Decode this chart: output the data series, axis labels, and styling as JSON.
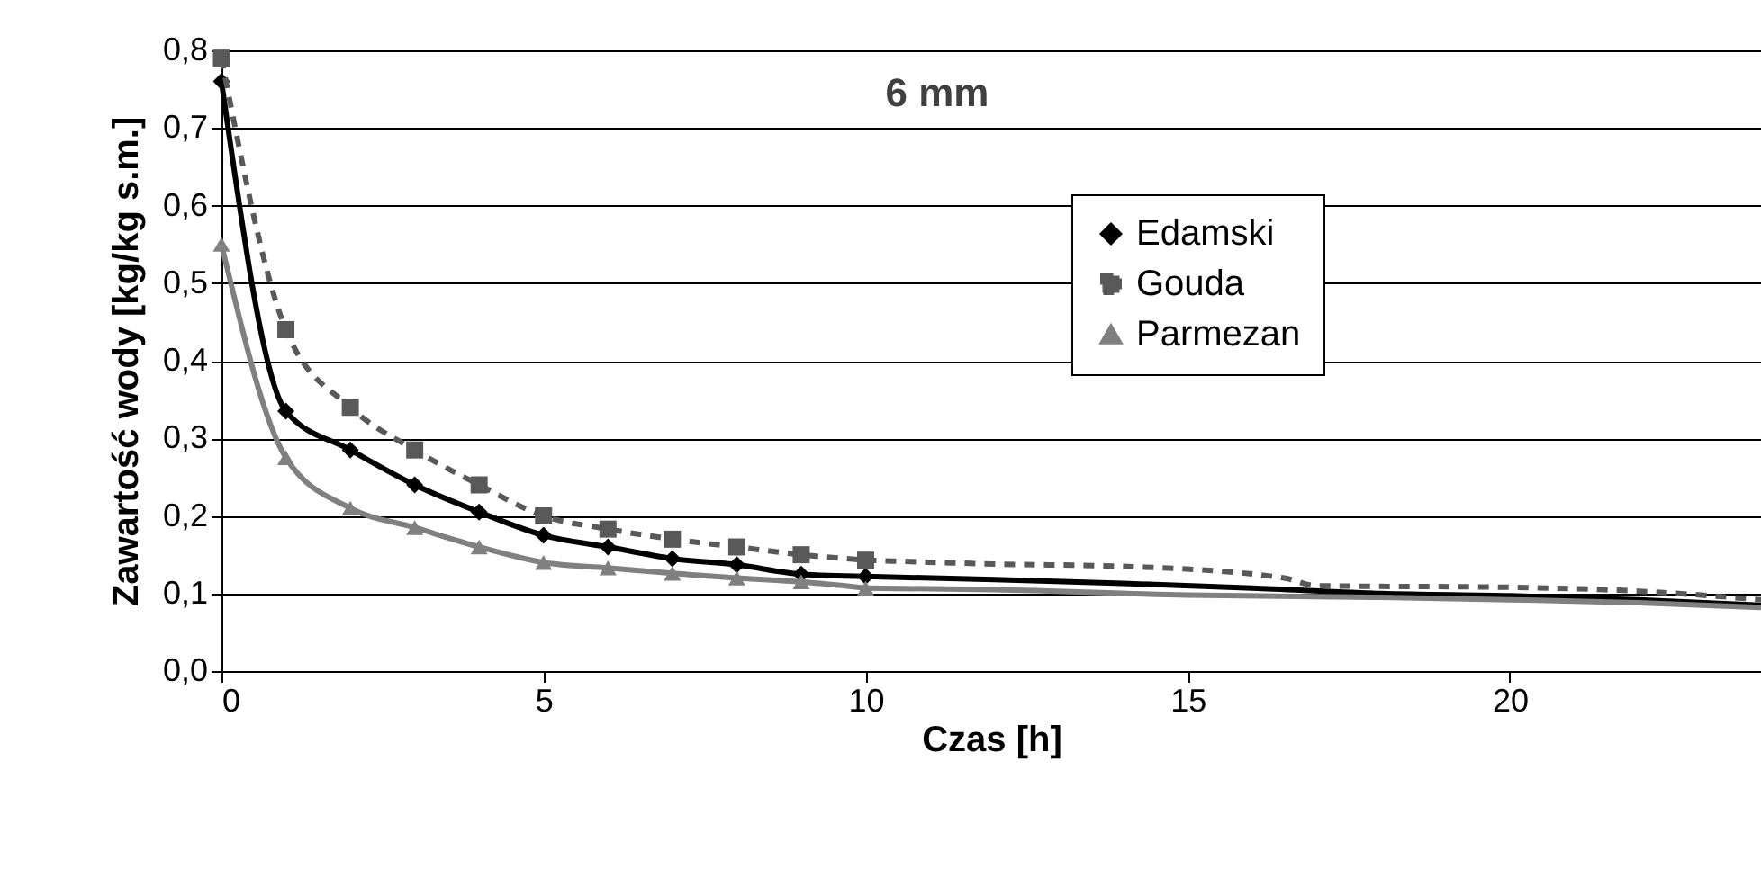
{
  "chart_data": {
    "type": "line",
    "title": "6 mm",
    "xlabel": "Czas [h]",
    "ylabel": "Zawartość wody [kg/kg s.m.]",
    "xlim": [
      0,
      23.9
    ],
    "xticks": [
      0,
      5,
      10,
      15,
      20
    ],
    "ylim": [
      0,
      0.8
    ],
    "yticks": [
      {
        "value": 0,
        "label": "0,0"
      },
      {
        "value": 0.1,
        "label": "0,1"
      },
      {
        "value": 0.2,
        "label": "0,2"
      },
      {
        "value": 0.3,
        "label": "0,3"
      },
      {
        "value": 0.4,
        "label": "0,4"
      },
      {
        "value": 0.5,
        "label": "0,5"
      },
      {
        "value": 0.6,
        "label": "0,6"
      },
      {
        "value": 0.7,
        "label": "0,7"
      },
      {
        "value": 0.8,
        "label": "0,8"
      }
    ],
    "grid": "y",
    "legend": "top right",
    "series": [
      {
        "name": "Edamski",
        "color": "#000000",
        "marker": "diamond",
        "line_style": "solid",
        "x": [
          0,
          1,
          2,
          3,
          4,
          5,
          6,
          7,
          8,
          9,
          10
        ],
        "values": [
          0.76,
          0.335,
          0.285,
          0.24,
          0.205,
          0.175,
          0.16,
          0.145,
          0.137,
          0.125,
          0.122
        ]
      },
      {
        "name": "Gouda",
        "color": "#595959",
        "marker": "square",
        "line_style": "dashed",
        "x": [
          0,
          1,
          2,
          3,
          4,
          5,
          6,
          7,
          8,
          9,
          10
        ],
        "values": [
          0.79,
          0.44,
          0.34,
          0.285,
          0.24,
          0.2,
          0.183,
          0.17,
          0.16,
          0.15,
          0.143
        ]
      },
      {
        "name": "Parmezan",
        "color": "#808080",
        "marker": "triangle",
        "line_style": "solid",
        "x": [
          0,
          1,
          2,
          3,
          4,
          5,
          6,
          7,
          8,
          9,
          10
        ],
        "values": [
          0.55,
          0.275,
          0.21,
          0.185,
          0.16,
          0.14,
          0.133,
          0.126,
          0.12,
          0.115,
          0.107
        ]
      },
      {
        "color": "#000000",
        "marker": "none",
        "line_style": "solid",
        "x": [
          10,
          12,
          14,
          16,
          18,
          20,
          22,
          23.9
        ],
        "values": [
          0.122,
          0.118,
          0.113,
          0.107,
          0.1,
          0.097,
          0.092,
          0.085
        ]
      },
      {
        "color": "#595959",
        "marker": "none",
        "line_style": "dashed",
        "x": [
          10,
          12,
          14,
          16.5,
          17,
          20,
          22,
          23.9
        ],
        "values": [
          0.143,
          0.138,
          0.135,
          0.12,
          0.11,
          0.108,
          0.103,
          0.092
        ]
      },
      {
        "color": "#808080",
        "marker": "none",
        "line_style": "solid",
        "x": [
          10,
          12,
          15,
          18,
          20,
          22,
          23.9
        ],
        "values": [
          0.107,
          0.105,
          0.098,
          0.095,
          0.092,
          0.088,
          0.082
        ]
      }
    ]
  }
}
